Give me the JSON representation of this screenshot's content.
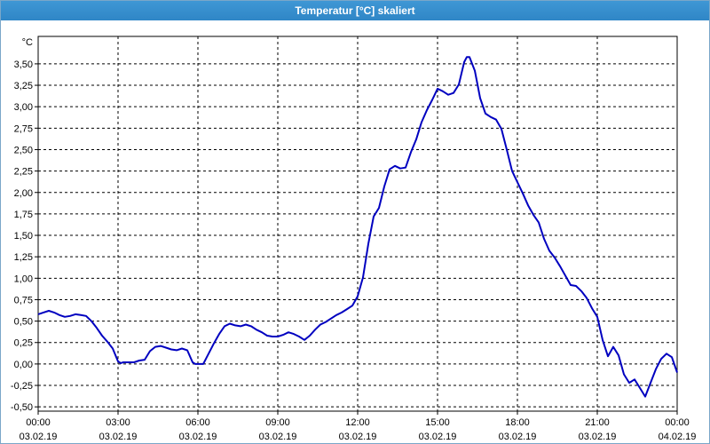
{
  "window": {
    "title": "Temperatur [°C] skaliert"
  },
  "chart_data": {
    "type": "line",
    "title": "Temperatur [°C] skaliert",
    "ylabel": "°C",
    "xlabel": "",
    "ylim": [
      -0.55,
      3.82
    ],
    "xlim": [
      0,
      24
    ],
    "y_ticks": [
      -0.5,
      -0.25,
      0.0,
      0.25,
      0.5,
      0.75,
      1.0,
      1.25,
      1.5,
      1.75,
      2.0,
      2.25,
      2.5,
      2.75,
      3.0,
      3.25,
      3.5
    ],
    "y_tick_labels": [
      "-0,50",
      "-0,25",
      "0,00",
      "0,25",
      "0,50",
      "0,75",
      "1,00",
      "1,25",
      "1,50",
      "1,75",
      "2,00",
      "2,25",
      "2,50",
      "2,75",
      "3,00",
      "3,25",
      "3,50"
    ],
    "x_ticks": [
      0,
      3,
      6,
      9,
      12,
      15,
      18,
      21,
      24
    ],
    "x_tick_labels": [
      {
        "time": "00:00",
        "date": "03.02.19"
      },
      {
        "time": "03:00",
        "date": "03.02.19"
      },
      {
        "time": "06:00",
        "date": "03.02.19"
      },
      {
        "time": "09:00",
        "date": "03.02.19"
      },
      {
        "time": "12:00",
        "date": "03.02.19"
      },
      {
        "time": "15:00",
        "date": "03.02.19"
      },
      {
        "time": "18:00",
        "date": "03.02.19"
      },
      {
        "time": "21:00",
        "date": "03.02.19"
      },
      {
        "time": "00:00",
        "date": "04.02.19"
      }
    ],
    "grid": true,
    "line_color": "#0000c0",
    "series": [
      {
        "x": [
          0.0,
          0.2,
          0.4,
          0.6,
          0.8,
          1.0,
          1.2,
          1.4,
          1.6,
          1.8,
          2.0,
          2.2,
          2.4,
          2.6,
          2.8,
          3.0,
          3.1,
          3.2,
          3.4,
          3.6,
          3.8,
          4.0,
          4.2,
          4.4,
          4.6,
          4.8,
          5.0,
          5.2,
          5.4,
          5.6,
          5.8,
          5.9,
          6.0,
          6.2,
          6.4,
          6.6,
          6.8,
          7.0,
          7.2,
          7.4,
          7.6,
          7.8,
          8.0,
          8.2,
          8.4,
          8.6,
          8.8,
          9.0,
          9.2,
          9.4,
          9.6,
          9.8,
          10.0,
          10.2,
          10.4,
          10.6,
          10.8,
          11.0,
          11.2,
          11.4,
          11.6,
          11.8,
          12.0,
          12.2,
          12.4,
          12.6,
          12.8,
          13.0,
          13.2,
          13.4,
          13.6,
          13.8,
          14.0,
          14.2,
          14.4,
          14.6,
          14.8,
          15.0,
          15.2,
          15.4,
          15.6,
          15.8,
          16.0,
          16.1,
          16.2,
          16.4,
          16.6,
          16.8,
          17.0,
          17.2,
          17.4,
          17.6,
          17.8,
          18.0,
          18.2,
          18.4,
          18.6,
          18.8,
          19.0,
          19.2,
          19.4,
          19.6,
          19.8,
          20.0,
          20.2,
          20.4,
          20.6,
          20.8,
          21.0,
          21.2,
          21.4,
          21.6,
          21.8,
          22.0,
          22.2,
          22.4,
          22.6,
          22.8,
          23.0,
          23.2,
          23.4,
          23.6,
          23.8,
          24.0
        ],
        "y": [
          0.58,
          0.6,
          0.62,
          0.6,
          0.57,
          0.55,
          0.56,
          0.58,
          0.57,
          0.56,
          0.5,
          0.42,
          0.33,
          0.26,
          0.18,
          0.03,
          0.01,
          0.02,
          0.02,
          0.02,
          0.04,
          0.05,
          0.15,
          0.2,
          0.21,
          0.19,
          0.17,
          0.16,
          0.18,
          0.16,
          0.02,
          0.0,
          0.0,
          0.0,
          0.12,
          0.24,
          0.35,
          0.44,
          0.47,
          0.45,
          0.44,
          0.46,
          0.44,
          0.4,
          0.37,
          0.33,
          0.32,
          0.32,
          0.34,
          0.37,
          0.35,
          0.32,
          0.28,
          0.33,
          0.4,
          0.46,
          0.49,
          0.53,
          0.57,
          0.6,
          0.64,
          0.68,
          0.79,
          1.01,
          1.4,
          1.72,
          1.82,
          2.07,
          2.27,
          2.31,
          2.28,
          2.29,
          2.47,
          2.62,
          2.82,
          2.96,
          3.08,
          3.21,
          3.18,
          3.14,
          3.16,
          3.26,
          3.52,
          3.58,
          3.58,
          3.42,
          3.1,
          2.92,
          2.88,
          2.85,
          2.74,
          2.5,
          2.25,
          2.12,
          1.99,
          1.85,
          1.74,
          1.65,
          1.46,
          1.32,
          1.24,
          1.14,
          1.03,
          0.92,
          0.91,
          0.85,
          0.77,
          0.65,
          0.55,
          0.28,
          0.09,
          0.2,
          0.1,
          -0.12,
          -0.22,
          -0.18,
          -0.28,
          -0.38,
          -0.22,
          -0.06,
          0.06,
          0.12,
          0.08,
          -0.1
        ]
      }
    ]
  }
}
